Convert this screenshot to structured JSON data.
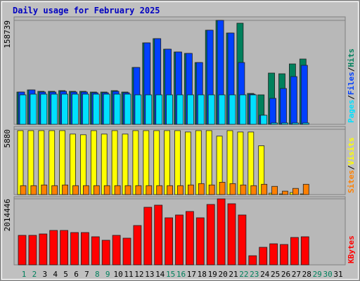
{
  "chart_data": [
    {
      "type": "bar",
      "title": "Daily usage for February 2025",
      "legend_separator": "/",
      "categories": [
        "1",
        "2",
        "3",
        "4",
        "5",
        "6",
        "7",
        "8",
        "9",
        "10",
        "11",
        "12",
        "13",
        "14",
        "15",
        "16",
        "17",
        "18",
        "19",
        "20",
        "21",
        "22",
        "23",
        "24",
        "25",
        "26",
        "27",
        "28",
        "29",
        "30",
        "31"
      ],
      "ylim": [
        0,
        158739
      ],
      "yticks": [
        158739
      ],
      "series": [
        {
          "name": "Hits",
          "color": "#00805c",
          "values": [
            49340,
            52560,
            50410,
            50410,
            51480,
            50410,
            50410,
            49340,
            49340,
            51480,
            49340,
            86880,
            124420,
            130860,
            114770,
            110480,
            108330,
            94390,
            143730,
            158739,
            139440,
            154450,
            47190,
            45050,
            78300,
            77230,
            92240,
            99750,
            0,
            0,
            0
          ]
        },
        {
          "name": "Files",
          "color": "#0040ff",
          "values": [
            49340,
            52560,
            49340,
            49340,
            50410,
            49340,
            49340,
            48270,
            48270,
            50410,
            48270,
            86880,
            124420,
            130860,
            114770,
            110480,
            108330,
            94390,
            143730,
            158739,
            139440,
            94390,
            46120,
            13940,
            39690,
            54700,
            72940,
            90100,
            0,
            0,
            0
          ]
        },
        {
          "name": "Pages",
          "color": "#00e0ff",
          "values": [
            45050,
            46120,
            46120,
            46120,
            46120,
            46120,
            46120,
            46120,
            46120,
            46120,
            46120,
            45050,
            45050,
            45050,
            45050,
            45050,
            45050,
            45050,
            45050,
            45050,
            45050,
            45050,
            45050,
            13940,
            2150,
            2150,
            2150,
            2150,
            0,
            0,
            0
          ]
        }
      ]
    },
    {
      "type": "bar",
      "legend_separator": "/",
      "categories": [
        "1",
        "2",
        "3",
        "4",
        "5",
        "6",
        "7",
        "8",
        "9",
        "10",
        "11",
        "12",
        "13",
        "14",
        "15",
        "16",
        "17",
        "18",
        "19",
        "20",
        "21",
        "22",
        "23",
        "24",
        "25",
        "26",
        "27",
        "28",
        "29",
        "30",
        "31"
      ],
      "ylim": [
        0,
        5880
      ],
      "yticks": [
        5880
      ],
      "series": [
        {
          "name": "Visits",
          "color": "#ffff00",
          "values": [
            5757,
            5757,
            5757,
            5757,
            5757,
            5447,
            5385,
            5757,
            5447,
            5757,
            5447,
            5757,
            5757,
            5757,
            5757,
            5757,
            5633,
            5757,
            5757,
            5262,
            5757,
            5633,
            5633,
            4395,
            124,
            62,
            186,
            62,
            0,
            0,
            0
          ]
        },
        {
          "name": "Sites",
          "color": "#ff8000",
          "values": [
            805,
            805,
            867,
            805,
            867,
            805,
            805,
            805,
            805,
            805,
            805,
            805,
            805,
            805,
            805,
            805,
            867,
            990,
            867,
            1114,
            990,
            867,
            805,
            930,
            743,
            310,
            557,
            930,
            0,
            0,
            0
          ]
        }
      ]
    },
    {
      "type": "bar",
      "categories": [
        "1",
        "2",
        "3",
        "4",
        "5",
        "6",
        "7",
        "8",
        "9",
        "10",
        "11",
        "12",
        "13",
        "14",
        "15",
        "16",
        "17",
        "18",
        "19",
        "20",
        "21",
        "22",
        "23",
        "24",
        "25",
        "26",
        "27",
        "28",
        "29",
        "30",
        "31"
      ],
      "category_colors": [
        "#00805c",
        "#00805c",
        "#000000",
        "#000000",
        "#000000",
        "#000000",
        "#000000",
        "#00805c",
        "#00805c",
        "#000000",
        "#000000",
        "#000000",
        "#000000",
        "#000000",
        "#00805c",
        "#00805c",
        "#000000",
        "#000000",
        "#000000",
        "#000000",
        "#000000",
        "#00805c",
        "#00805c",
        "#000000",
        "#000000",
        "#000000",
        "#000000",
        "#000000",
        "#00805c",
        "#00805c",
        "#000000"
      ],
      "ylim": [
        0,
        2014446
      ],
      "yticks": [
        2014446
      ],
      "series": [
        {
          "name": "KBytes",
          "color": "#ff0000",
          "values": [
            900060,
            900060,
            942920,
            1050070,
            1050070,
            985780,
            985780,
            857200,
            750050,
            900060,
            814340,
            1200080,
            1757260,
            1821550,
            1435810,
            1521530,
            1628680,
            1435810,
            1842980,
            2014446,
            1864410,
            1521530,
            278590,
            535750,
            642900,
            621470,
            835770,
            857200,
            0,
            0,
            0
          ]
        }
      ]
    }
  ]
}
